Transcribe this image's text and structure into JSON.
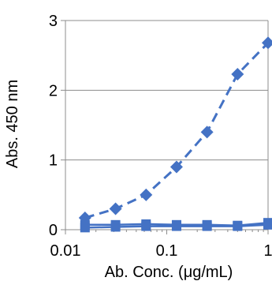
{
  "chart_data": {
    "type": "line",
    "title": "",
    "xlabel": "Ab. Conc. (μg/mL)",
    "ylabel": "Abs. 450 nm",
    "xscale": "log",
    "xlim": [
      0.01,
      1
    ],
    "ylim": [
      0,
      3
    ],
    "x_ticks": [
      "0.01",
      "0.1",
      "1"
    ],
    "y_ticks": [
      "0",
      "1",
      "2",
      "3"
    ],
    "grid": "horizontal",
    "legend": "none",
    "color": "#4472C4",
    "series": [
      {
        "marker": "diamond",
        "line_style": "dashed",
        "x": [
          0.0156,
          0.03125,
          0.0625,
          0.125,
          0.25,
          0.5,
          1
        ],
        "y": [
          0.17,
          0.3,
          0.5,
          0.9,
          1.4,
          2.23,
          2.68
        ]
      },
      {
        "marker": "square",
        "line_style": "solid",
        "x": [
          0.0156,
          0.03125,
          0.0625,
          0.125,
          0.25,
          0.5,
          1
        ],
        "y": [
          0.07,
          0.07,
          0.08,
          0.07,
          0.07,
          0.06,
          0.1
        ]
      },
      {
        "marker": "square",
        "line_style": "solid",
        "x": [
          0.0156,
          0.03125,
          0.0625,
          0.125,
          0.25,
          0.5,
          1
        ],
        "y": [
          0.03,
          0.04,
          0.05,
          0.05,
          0.05,
          0.05,
          0.07
        ]
      }
    ]
  }
}
